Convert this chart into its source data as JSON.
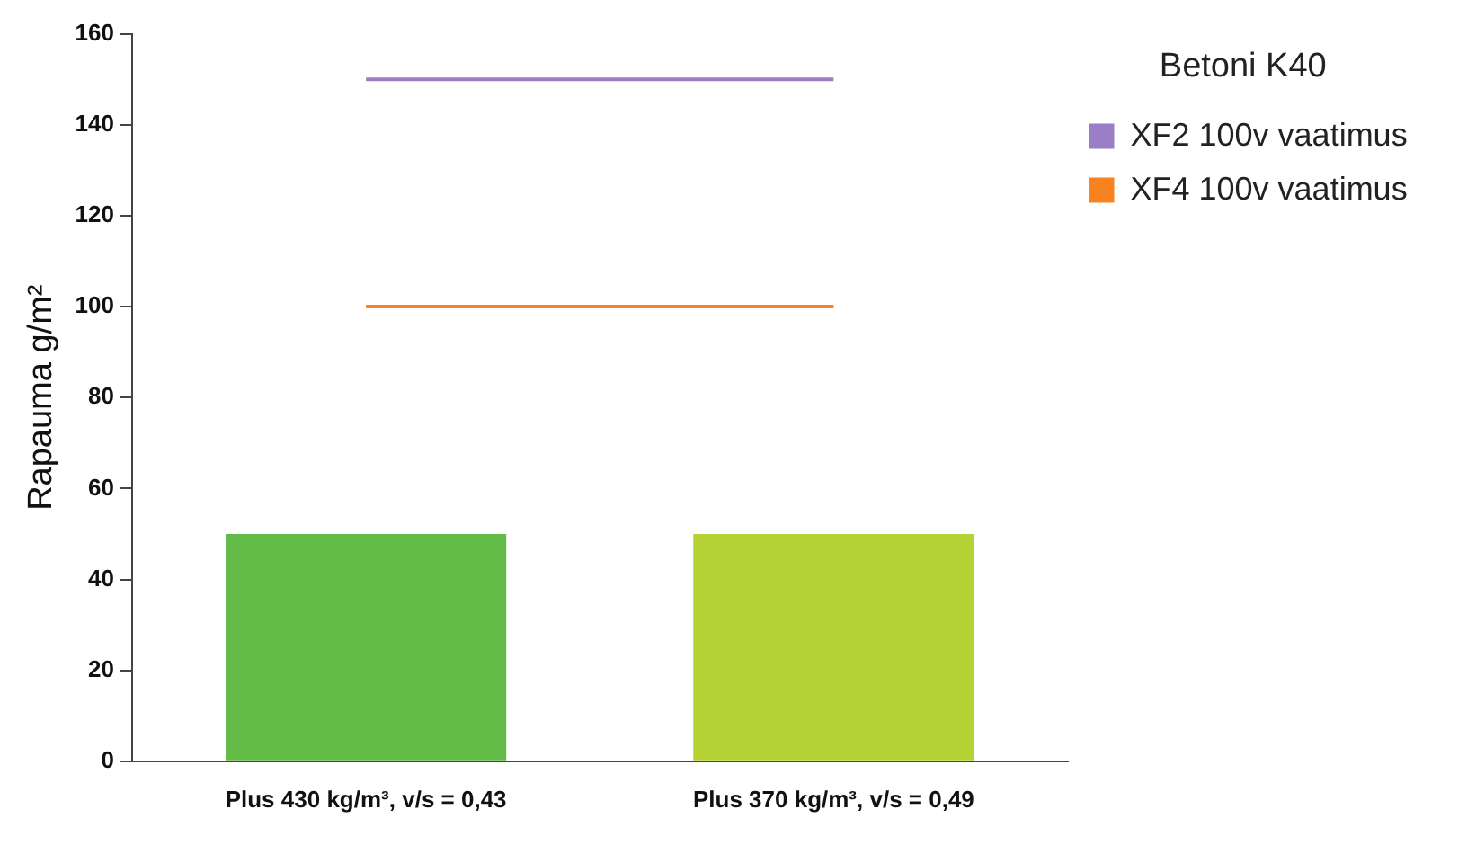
{
  "chart_data": {
    "type": "bar",
    "ylabel": "Rapauma g/m²",
    "legend_title": "Betoni K40",
    "legend": "top right",
    "grid": false,
    "categories": [
      "Plus 430 kg/m³, v/s = 0,43",
      "Plus 370 kg/m³, v/s = 0,49"
    ],
    "ylim": [
      0,
      160
    ],
    "yticks": [
      0,
      20,
      40,
      60,
      80,
      100,
      120,
      140,
      160
    ],
    "series": [
      {
        "colors": [
          "#62bb46",
          "#b5d334"
        ],
        "values": [
          50,
          50
        ]
      },
      {
        "type": "line",
        "name": "XF2 100v vaatimus",
        "color": "#9b7fc6",
        "values": [
          150,
          150
        ]
      },
      {
        "type": "line",
        "name": "XF4 100v vaatimus",
        "color": "#f7821f",
        "values": [
          100,
          100
        ]
      }
    ]
  }
}
